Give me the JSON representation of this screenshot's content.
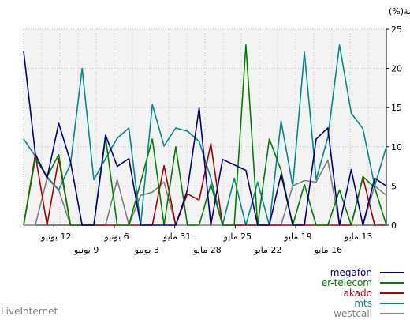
{
  "chart_data": {
    "type": "line",
    "ylabel": "الحصة(%)",
    "ylim": [
      0,
      25
    ],
    "yticks": [
      0,
      5,
      10,
      15,
      20,
      25
    ],
    "grid": true,
    "legend_position": "bottom-right",
    "x_direction": "right-to-left",
    "x_labels_row1": [
      "12 يونيو",
      "6 يونيو",
      "31 مايو",
      "25 مايو",
      "19 مايو",
      "13 مايو"
    ],
    "x_labels_row2": [
      "9 يونيو",
      "3 يونيو",
      "28 مايو",
      "22 مايو",
      "16 مايو"
    ],
    "x_points": 32,
    "series": [
      {
        "name": "megafon",
        "color": "#000080",
        "values": [
          22.2,
          9.1,
          6.0,
          13.0,
          8.1,
          0,
          0,
          11.5,
          7.5,
          8.5,
          0,
          0,
          0,
          0,
          4.5,
          15.0,
          0,
          8.4,
          7.7,
          7.0,
          0,
          0,
          6.5,
          0,
          0,
          11.0,
          12.4,
          0,
          7.1,
          0,
          6.0,
          5.0
        ]
      },
      {
        "name": "er-telecom",
        "color": "#008000",
        "values": [
          0,
          8.5,
          6.2,
          9.0,
          0,
          0,
          0,
          11.2,
          0,
          0,
          5.5,
          11.0,
          0,
          10.0,
          0,
          0,
          5.2,
          0,
          0,
          23.0,
          0,
          11.0,
          7.0,
          0,
          5.2,
          0,
          0,
          4.5,
          0,
          6.2,
          4.8,
          0
        ]
      },
      {
        "name": "akado",
        "color": "#aa0000",
        "values": [
          0,
          9.0,
          0,
          8.5,
          0,
          0,
          0,
          0,
          0,
          0,
          0,
          0,
          7.6,
          0,
          4.0,
          3.2,
          10.4,
          0,
          0,
          0,
          0,
          0,
          0,
          0,
          0,
          0,
          0,
          0,
          0,
          6.1,
          0,
          0
        ]
      },
      {
        "name": "mts",
        "color": "#008b8b",
        "values": [
          11.0,
          8.8,
          6.2,
          4.5,
          7.8,
          20.0,
          5.8,
          8.5,
          11.1,
          12.4,
          0,
          15.4,
          10.1,
          12.4,
          12.0,
          10.7,
          6.0,
          0,
          6.0,
          0,
          5.5,
          0,
          13.3,
          5.0,
          22.1,
          5.8,
          11.2,
          23.0,
          14.3,
          12.3,
          5.0,
          10.0
        ]
      },
      {
        "name": "westcall",
        "color": "#808080",
        "values": [
          0,
          0,
          6.0,
          4.5,
          0,
          0,
          0,
          0,
          5.8,
          0,
          3.8,
          4.2,
          5.5,
          0,
          0,
          0,
          0,
          0,
          0,
          0,
          0,
          0,
          0,
          5.0,
          5.7,
          5.5,
          8.3,
          0,
          0,
          0,
          5.0,
          3.8
        ]
      }
    ]
  },
  "brand": "LiveInternet"
}
